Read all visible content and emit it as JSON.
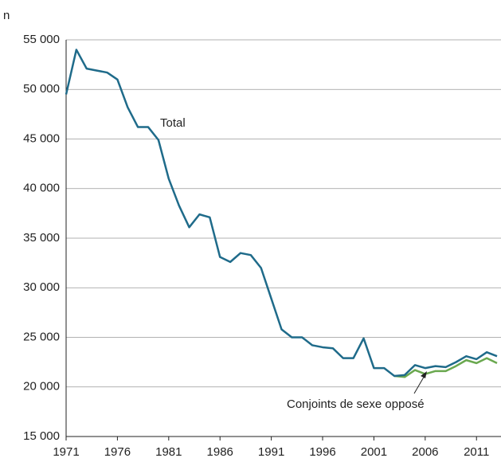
{
  "chart_data": {
    "type": "line",
    "y_label": "n",
    "x": [
      1971,
      1972,
      1973,
      1974,
      1975,
      1976,
      1977,
      1978,
      1979,
      1980,
      1981,
      1982,
      1983,
      1984,
      1985,
      1986,
      1987,
      1988,
      1989,
      1990,
      1991,
      1992,
      1993,
      1994,
      1995,
      1996,
      1997,
      1998,
      1999,
      2000,
      2001,
      2002,
      2003,
      2004,
      2005,
      2006,
      2007,
      2008,
      2009,
      2010,
      2011,
      2012,
      2013
    ],
    "series": [
      {
        "name": "Total",
        "color": "#1f6b8a",
        "values": [
          49500,
          54000,
          52100,
          51900,
          51700,
          51000,
          48200,
          46200,
          46200,
          44900,
          41000,
          38300,
          36100,
          37400,
          37100,
          33100,
          32600,
          33500,
          33300,
          32000,
          28900,
          25800,
          25000,
          25000,
          24200,
          24000,
          23900,
          22900,
          22900,
          24900,
          21900,
          21900,
          21100,
          21200,
          22200,
          21900,
          22100,
          22000,
          22500,
          23100,
          22800,
          23500,
          23100
        ]
      },
      {
        "name": "Conjoints de sexe opposé",
        "color": "#6aa84f",
        "values": [
          null,
          null,
          null,
          null,
          null,
          null,
          null,
          null,
          null,
          null,
          null,
          null,
          null,
          null,
          null,
          null,
          null,
          null,
          null,
          null,
          null,
          null,
          null,
          null,
          null,
          null,
          null,
          null,
          null,
          null,
          null,
          null,
          21100,
          21000,
          21700,
          21300,
          21600,
          21600,
          22100,
          22700,
          22400,
          22900,
          22400
        ]
      }
    ],
    "xlim": [
      1971,
      2013
    ],
    "xticks": [
      1971,
      1976,
      1981,
      1986,
      1991,
      1996,
      2001,
      2006,
      2011
    ],
    "ylim": [
      15000,
      55000
    ],
    "yticks": [
      {
        "value": 15000,
        "label": "15 000"
      },
      {
        "value": 20000,
        "label": "20 000"
      },
      {
        "value": 25000,
        "label": "25 000"
      },
      {
        "value": 30000,
        "label": "30 000"
      },
      {
        "value": 35000,
        "label": "35 000"
      },
      {
        "value": 40000,
        "label": "40 000"
      },
      {
        "value": 45000,
        "label": "45 000"
      },
      {
        "value": 50000,
        "label": "50 000"
      },
      {
        "value": 55000,
        "label": "55 000"
      }
    ],
    "grid": true
  }
}
